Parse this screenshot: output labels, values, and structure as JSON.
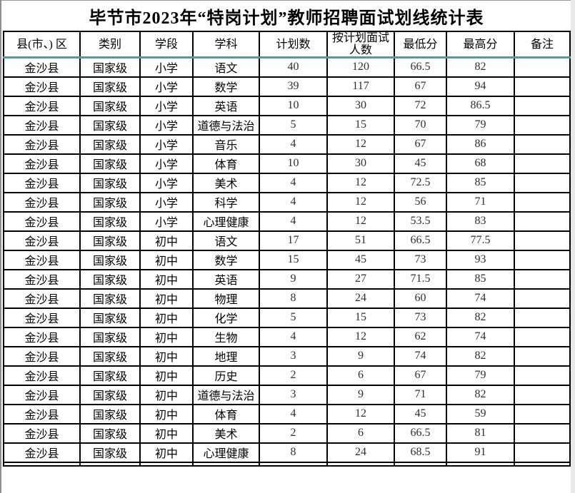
{
  "page": {
    "title": "毕节市2023年“特岗计划”教师招聘面试划线统计表"
  },
  "table": {
    "columns": [
      "县(市、) 区",
      "类别",
      "学段",
      "学科",
      "计划数",
      "按计划面试人数",
      "最低分",
      "最高分",
      "备注"
    ],
    "rows": [
      [
        "金沙县",
        "国家级",
        "小学",
        "语文",
        "40",
        "120",
        "66.5",
        "82",
        ""
      ],
      [
        "金沙县",
        "国家级",
        "小学",
        "数学",
        "39",
        "117",
        "67",
        "94",
        ""
      ],
      [
        "金沙县",
        "国家级",
        "小学",
        "英语",
        "10",
        "30",
        "72",
        "86.5",
        ""
      ],
      [
        "金沙县",
        "国家级",
        "小学",
        "道德与法治",
        "5",
        "15",
        "70",
        "79",
        ""
      ],
      [
        "金沙县",
        "国家级",
        "小学",
        "音乐",
        "4",
        "12",
        "67",
        "86",
        ""
      ],
      [
        "金沙县",
        "国家级",
        "小学",
        "体育",
        "10",
        "30",
        "45",
        "68",
        ""
      ],
      [
        "金沙县",
        "国家级",
        "小学",
        "美术",
        "4",
        "12",
        "72.5",
        "85",
        ""
      ],
      [
        "金沙县",
        "国家级",
        "小学",
        "科学",
        "4",
        "12",
        "56",
        "71",
        ""
      ],
      [
        "金沙县",
        "国家级",
        "小学",
        "心理健康",
        "4",
        "12",
        "53.5",
        "83",
        ""
      ],
      [
        "金沙县",
        "国家级",
        "初中",
        "语文",
        "17",
        "51",
        "66.5",
        "77.5",
        ""
      ],
      [
        "金沙县",
        "国家级",
        "初中",
        "数学",
        "15",
        "45",
        "73",
        "93",
        ""
      ],
      [
        "金沙县",
        "国家级",
        "初中",
        "英语",
        "9",
        "27",
        "71.5",
        "85",
        ""
      ],
      [
        "金沙县",
        "国家级",
        "初中",
        "物理",
        "8",
        "24",
        "60",
        "74",
        ""
      ],
      [
        "金沙县",
        "国家级",
        "初中",
        "化学",
        "5",
        "15",
        "73",
        "82",
        ""
      ],
      [
        "金沙县",
        "国家级",
        "初中",
        "生物",
        "4",
        "12",
        "62",
        "74",
        ""
      ],
      [
        "金沙县",
        "国家级",
        "初中",
        "地理",
        "3",
        "9",
        "74",
        "82",
        ""
      ],
      [
        "金沙县",
        "国家级",
        "初中",
        "历史",
        "2",
        "6",
        "67",
        "79",
        ""
      ],
      [
        "金沙县",
        "国家级",
        "初中",
        "道德与法治",
        "3",
        "9",
        "71",
        "82",
        ""
      ],
      [
        "金沙县",
        "国家级",
        "初中",
        "体育",
        "4",
        "12",
        "45",
        "59",
        ""
      ],
      [
        "金沙县",
        "国家级",
        "初中",
        "美术",
        "2",
        "6",
        "66.5",
        "81",
        ""
      ],
      [
        "金沙县",
        "国家级",
        "初中",
        "心理健康",
        "8",
        "24",
        "68.5",
        "91",
        ""
      ]
    ]
  },
  "colors": {
    "grid": "#000000",
    "header_underline": "#3aa79f",
    "text": "#000000",
    "number_text": "#2f2f2f",
    "background": "#ffffff"
  }
}
